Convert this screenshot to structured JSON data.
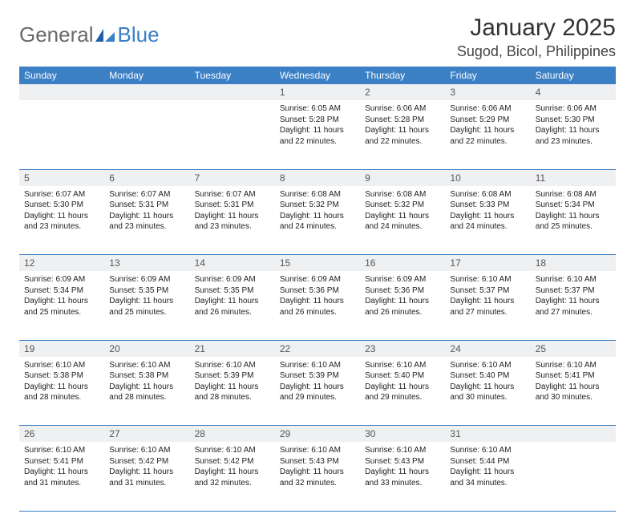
{
  "logo": {
    "text_general": "General",
    "text_blue": "Blue"
  },
  "title": "January 2025",
  "location": "Sugod, Bicol, Philippines",
  "colors": {
    "header_bg": "#3b7fc4",
    "header_text": "#ffffff",
    "daynum_bg": "#eef0f2",
    "daynum_text": "#555555",
    "body_text": "#222222",
    "rule": "#3b7fc4",
    "page_bg": "#ffffff"
  },
  "typography": {
    "title_fontsize": 30,
    "location_fontsize": 18,
    "weekday_fontsize": 12,
    "daynum_fontsize": 12,
    "cell_fontsize": 10
  },
  "weekdays": [
    "Sunday",
    "Monday",
    "Tuesday",
    "Wednesday",
    "Thursday",
    "Friday",
    "Saturday"
  ],
  "weeks": [
    [
      {
        "n": "",
        "sunrise": "",
        "sunset": "",
        "daylight": ""
      },
      {
        "n": "",
        "sunrise": "",
        "sunset": "",
        "daylight": ""
      },
      {
        "n": "",
        "sunrise": "",
        "sunset": "",
        "daylight": ""
      },
      {
        "n": "1",
        "sunrise": "Sunrise: 6:05 AM",
        "sunset": "Sunset: 5:28 PM",
        "daylight": "Daylight: 11 hours and 22 minutes."
      },
      {
        "n": "2",
        "sunrise": "Sunrise: 6:06 AM",
        "sunset": "Sunset: 5:28 PM",
        "daylight": "Daylight: 11 hours and 22 minutes."
      },
      {
        "n": "3",
        "sunrise": "Sunrise: 6:06 AM",
        "sunset": "Sunset: 5:29 PM",
        "daylight": "Daylight: 11 hours and 22 minutes."
      },
      {
        "n": "4",
        "sunrise": "Sunrise: 6:06 AM",
        "sunset": "Sunset: 5:30 PM",
        "daylight": "Daylight: 11 hours and 23 minutes."
      }
    ],
    [
      {
        "n": "5",
        "sunrise": "Sunrise: 6:07 AM",
        "sunset": "Sunset: 5:30 PM",
        "daylight": "Daylight: 11 hours and 23 minutes."
      },
      {
        "n": "6",
        "sunrise": "Sunrise: 6:07 AM",
        "sunset": "Sunset: 5:31 PM",
        "daylight": "Daylight: 11 hours and 23 minutes."
      },
      {
        "n": "7",
        "sunrise": "Sunrise: 6:07 AM",
        "sunset": "Sunset: 5:31 PM",
        "daylight": "Daylight: 11 hours and 23 minutes."
      },
      {
        "n": "8",
        "sunrise": "Sunrise: 6:08 AM",
        "sunset": "Sunset: 5:32 PM",
        "daylight": "Daylight: 11 hours and 24 minutes."
      },
      {
        "n": "9",
        "sunrise": "Sunrise: 6:08 AM",
        "sunset": "Sunset: 5:32 PM",
        "daylight": "Daylight: 11 hours and 24 minutes."
      },
      {
        "n": "10",
        "sunrise": "Sunrise: 6:08 AM",
        "sunset": "Sunset: 5:33 PM",
        "daylight": "Daylight: 11 hours and 24 minutes."
      },
      {
        "n": "11",
        "sunrise": "Sunrise: 6:08 AM",
        "sunset": "Sunset: 5:34 PM",
        "daylight": "Daylight: 11 hours and 25 minutes."
      }
    ],
    [
      {
        "n": "12",
        "sunrise": "Sunrise: 6:09 AM",
        "sunset": "Sunset: 5:34 PM",
        "daylight": "Daylight: 11 hours and 25 minutes."
      },
      {
        "n": "13",
        "sunrise": "Sunrise: 6:09 AM",
        "sunset": "Sunset: 5:35 PM",
        "daylight": "Daylight: 11 hours and 25 minutes."
      },
      {
        "n": "14",
        "sunrise": "Sunrise: 6:09 AM",
        "sunset": "Sunset: 5:35 PM",
        "daylight": "Daylight: 11 hours and 26 minutes."
      },
      {
        "n": "15",
        "sunrise": "Sunrise: 6:09 AM",
        "sunset": "Sunset: 5:36 PM",
        "daylight": "Daylight: 11 hours and 26 minutes."
      },
      {
        "n": "16",
        "sunrise": "Sunrise: 6:09 AM",
        "sunset": "Sunset: 5:36 PM",
        "daylight": "Daylight: 11 hours and 26 minutes."
      },
      {
        "n": "17",
        "sunrise": "Sunrise: 6:10 AM",
        "sunset": "Sunset: 5:37 PM",
        "daylight": "Daylight: 11 hours and 27 minutes."
      },
      {
        "n": "18",
        "sunrise": "Sunrise: 6:10 AM",
        "sunset": "Sunset: 5:37 PM",
        "daylight": "Daylight: 11 hours and 27 minutes."
      }
    ],
    [
      {
        "n": "19",
        "sunrise": "Sunrise: 6:10 AM",
        "sunset": "Sunset: 5:38 PM",
        "daylight": "Daylight: 11 hours and 28 minutes."
      },
      {
        "n": "20",
        "sunrise": "Sunrise: 6:10 AM",
        "sunset": "Sunset: 5:38 PM",
        "daylight": "Daylight: 11 hours and 28 minutes."
      },
      {
        "n": "21",
        "sunrise": "Sunrise: 6:10 AM",
        "sunset": "Sunset: 5:39 PM",
        "daylight": "Daylight: 11 hours and 28 minutes."
      },
      {
        "n": "22",
        "sunrise": "Sunrise: 6:10 AM",
        "sunset": "Sunset: 5:39 PM",
        "daylight": "Daylight: 11 hours and 29 minutes."
      },
      {
        "n": "23",
        "sunrise": "Sunrise: 6:10 AM",
        "sunset": "Sunset: 5:40 PM",
        "daylight": "Daylight: 11 hours and 29 minutes."
      },
      {
        "n": "24",
        "sunrise": "Sunrise: 6:10 AM",
        "sunset": "Sunset: 5:40 PM",
        "daylight": "Daylight: 11 hours and 30 minutes."
      },
      {
        "n": "25",
        "sunrise": "Sunrise: 6:10 AM",
        "sunset": "Sunset: 5:41 PM",
        "daylight": "Daylight: 11 hours and 30 minutes."
      }
    ],
    [
      {
        "n": "26",
        "sunrise": "Sunrise: 6:10 AM",
        "sunset": "Sunset: 5:41 PM",
        "daylight": "Daylight: 11 hours and 31 minutes."
      },
      {
        "n": "27",
        "sunrise": "Sunrise: 6:10 AM",
        "sunset": "Sunset: 5:42 PM",
        "daylight": "Daylight: 11 hours and 31 minutes."
      },
      {
        "n": "28",
        "sunrise": "Sunrise: 6:10 AM",
        "sunset": "Sunset: 5:42 PM",
        "daylight": "Daylight: 11 hours and 32 minutes."
      },
      {
        "n": "29",
        "sunrise": "Sunrise: 6:10 AM",
        "sunset": "Sunset: 5:43 PM",
        "daylight": "Daylight: 11 hours and 32 minutes."
      },
      {
        "n": "30",
        "sunrise": "Sunrise: 6:10 AM",
        "sunset": "Sunset: 5:43 PM",
        "daylight": "Daylight: 11 hours and 33 minutes."
      },
      {
        "n": "31",
        "sunrise": "Sunrise: 6:10 AM",
        "sunset": "Sunset: 5:44 PM",
        "daylight": "Daylight: 11 hours and 34 minutes."
      },
      {
        "n": "",
        "sunrise": "",
        "sunset": "",
        "daylight": ""
      }
    ]
  ]
}
